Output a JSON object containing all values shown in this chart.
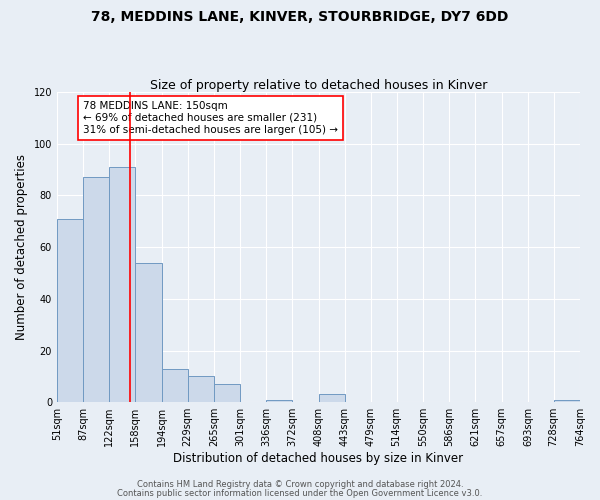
{
  "title": "78, MEDDINS LANE, KINVER, STOURBRIDGE, DY7 6DD",
  "subtitle": "Size of property relative to detached houses in Kinver",
  "xlabel": "Distribution of detached houses by size in Kinver",
  "ylabel": "Number of detached properties",
  "bin_edges": [
    51,
    87,
    122,
    158,
    194,
    229,
    265,
    301,
    336,
    372,
    408,
    443,
    479,
    514,
    550,
    586,
    621,
    657,
    693,
    728,
    764
  ],
  "bar_heights": [
    71,
    87,
    91,
    54,
    13,
    10,
    7,
    0,
    1,
    0,
    3,
    0,
    0,
    0,
    0,
    0,
    0,
    0,
    0,
    1
  ],
  "bar_color": "#ccd9ea",
  "bar_edge_color": "#7099c2",
  "ylim": [
    0,
    120
  ],
  "yticks": [
    0,
    20,
    40,
    60,
    80,
    100,
    120
  ],
  "vline_x": 150,
  "vline_color": "red",
  "annotation_line1": "78 MEDDINS LANE: 150sqm",
  "annotation_line2": "← 69% of detached houses are smaller (231)",
  "annotation_line3": "31% of semi-detached houses are larger (105) →",
  "annotation_box_color": "white",
  "annotation_box_edge": "red",
  "footer1": "Contains HM Land Registry data © Crown copyright and database right 2024.",
  "footer2": "Contains public sector information licensed under the Open Government Licence v3.0.",
  "background_color": "#e8eef5",
  "plot_bg_color": "#e8eef5",
  "grid_color": "#ffffff",
  "title_fontsize": 10,
  "subtitle_fontsize": 9,
  "label_fontsize": 8.5,
  "tick_fontsize": 7,
  "annot_fontsize": 7.5,
  "footer_fontsize": 6
}
